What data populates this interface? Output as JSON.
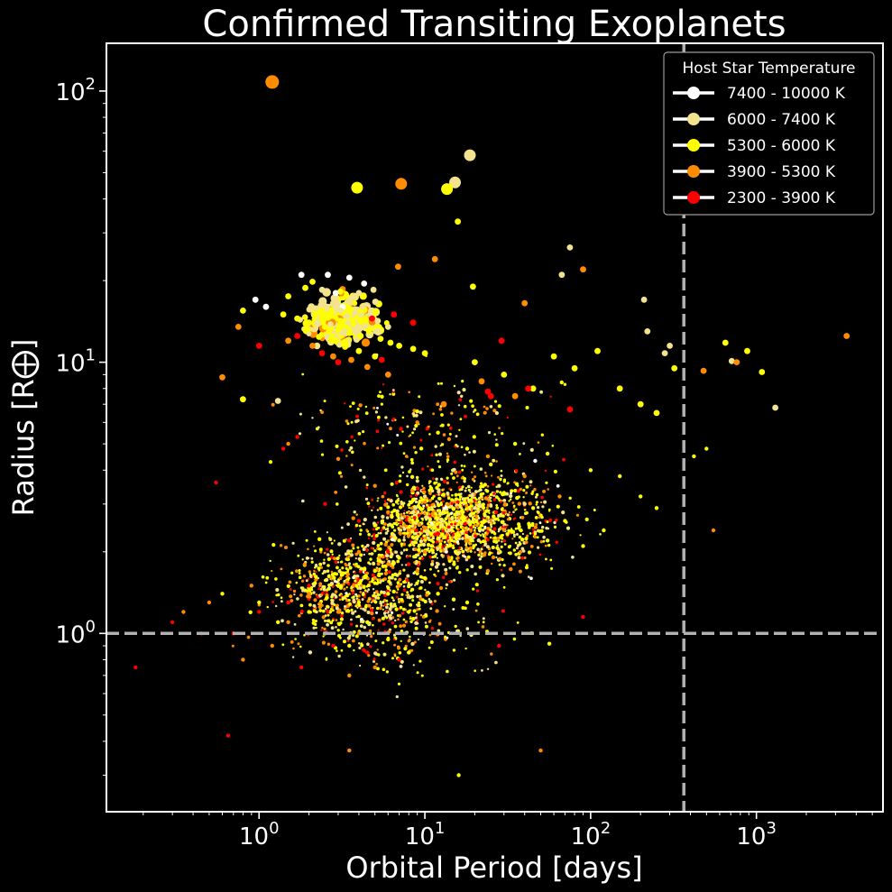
{
  "chart_data": {
    "type": "scatter",
    "title": "Confirmed Transiting Exoplanets",
    "xlabel": "Orbital Period [days]",
    "ylabel": "Radius [R⨁]",
    "xscale": "log",
    "yscale": "log",
    "xlim": [
      0.12,
      5800
    ],
    "ylim": [
      0.22,
      150
    ],
    "x_ticks": [
      {
        "value": 1,
        "label": "10",
        "exp": "0"
      },
      {
        "value": 10,
        "label": "10",
        "exp": "1"
      },
      {
        "value": 100,
        "label": "10",
        "exp": "2"
      },
      {
        "value": 1000,
        "label": "10",
        "exp": "3"
      }
    ],
    "y_ticks": [
      {
        "value": 1,
        "label": "10",
        "exp": "0"
      },
      {
        "value": 10,
        "label": "10",
        "exp": "1"
      },
      {
        "value": 100,
        "label": "10",
        "exp": "2"
      }
    ],
    "reference_lines": [
      {
        "axis": "x",
        "value": 365,
        "style": "dashed",
        "color": "#b0b0b0"
      },
      {
        "axis": "y",
        "value": 1,
        "style": "dashed",
        "color": "#b0b0b0"
      }
    ],
    "grid": false,
    "legend": {
      "title": "Host Star Temperature",
      "placement": "top-right",
      "entries": [
        {
          "label": "7400 - 10000 K",
          "color": "#ffffff"
        },
        {
          "label": "6000 - 7400 K",
          "color": "#f3e38e"
        },
        {
          "label": "5300 - 6000 K",
          "color": "#ffff00"
        },
        {
          "label": "3900 - 5300 K",
          "color": "#ff8c00"
        },
        {
          "label": "2300 - 3900 K",
          "color": "#ff0000"
        }
      ]
    },
    "series": [
      {
        "name": "7400 - 10000 K",
        "color": "#ffffff",
        "points": [
          [
            1.8,
            21
          ],
          [
            2.6,
            21
          ],
          [
            3.5,
            20.5
          ],
          [
            4.3,
            19.5
          ],
          [
            2.9,
            18
          ],
          [
            3.2,
            16
          ],
          [
            0.95,
            17
          ],
          [
            1.1,
            16
          ]
        ]
      },
      {
        "name": "6000 - 7400 K",
        "color": "#f3e38e",
        "points": [
          [
            18.7,
            58
          ],
          [
            15.2,
            46
          ],
          [
            75,
            26.5
          ],
          [
            67,
            21
          ],
          [
            210,
            17
          ],
          [
            2.4,
            18.5
          ],
          [
            2.8,
            16.5
          ],
          [
            3.1,
            15.5
          ],
          [
            3.4,
            14.8
          ],
          [
            3.8,
            15.2
          ],
          [
            4.2,
            16
          ],
          [
            4.7,
            15
          ],
          [
            5.2,
            14.2
          ],
          [
            6.0,
            13.5
          ],
          [
            2.7,
            13.8
          ],
          [
            3.3,
            13
          ],
          [
            3.9,
            12.8
          ],
          [
            4.4,
            13.6
          ],
          [
            2.2,
            15.8
          ],
          [
            3.6,
            17.2
          ],
          [
            4.0,
            18
          ],
          [
            4.9,
            18.5
          ],
          [
            1.3,
            7.2
          ],
          [
            220,
            13
          ],
          [
            300,
            11.5
          ],
          [
            280,
            10.8
          ],
          [
            710,
            10.1
          ],
          [
            1300,
            6.8
          ],
          [
            10,
            3.2
          ],
          [
            8.5,
            2.8
          ],
          [
            14,
            2.4
          ],
          [
            20,
            2.9
          ],
          [
            6.5,
            2.3
          ],
          [
            12,
            1.8
          ],
          [
            28,
            3.5
          ],
          [
            40,
            3.0
          ]
        ]
      },
      {
        "name": "5300 - 6000 K",
        "color": "#ffff00",
        "points": [
          [
            3.9,
            44
          ],
          [
            13.6,
            43.5
          ],
          [
            15.8,
            33
          ],
          [
            19.5,
            19
          ],
          [
            0.8,
            15.5
          ],
          [
            1.4,
            15
          ],
          [
            1.7,
            14.5
          ],
          [
            2.0,
            14
          ],
          [
            2.5,
            13.5
          ],
          [
            3.0,
            13.2
          ],
          [
            3.5,
            12.8
          ],
          [
            4.1,
            12.5
          ],
          [
            4.6,
            13
          ],
          [
            5.4,
            12.2
          ],
          [
            6.2,
            11.8
          ],
          [
            7.0,
            11.5
          ],
          [
            8.5,
            11.2
          ],
          [
            10,
            10.8
          ],
          [
            2.3,
            12.4
          ],
          [
            2.9,
            12
          ],
          [
            3.3,
            11.4
          ],
          [
            4.0,
            11
          ],
          [
            5.0,
            10.5
          ],
          [
            2.6,
            14.6
          ],
          [
            3.1,
            14.2
          ],
          [
            3.7,
            13.9
          ],
          [
            4.3,
            14.4
          ],
          [
            1.5,
            17.5
          ],
          [
            1.9,
            18.8
          ],
          [
            2.1,
            19.8
          ],
          [
            20,
            10
          ],
          [
            30,
            9
          ],
          [
            45,
            8
          ],
          [
            60,
            10.5
          ],
          [
            80,
            9.5
          ],
          [
            110,
            11
          ],
          [
            150,
            8
          ],
          [
            200,
            7
          ],
          [
            250,
            6.5
          ],
          [
            320,
            9.5
          ],
          [
            420,
            4.5
          ],
          [
            500,
            4.8
          ],
          [
            650,
            11.8
          ],
          [
            880,
            11
          ],
          [
            1080,
            9.2
          ],
          [
            0.8,
            7.3
          ],
          [
            12,
            5.5
          ],
          [
            18,
            4.8
          ],
          [
            25,
            4.2
          ],
          [
            35,
            5.0
          ],
          [
            55,
            4.6
          ],
          [
            100,
            4.0
          ],
          [
            150,
            3.8
          ],
          [
            200,
            3.2
          ],
          [
            250,
            2.9
          ],
          [
            5,
            2.5
          ],
          [
            7,
            2.2
          ],
          [
            9,
            2.6
          ],
          [
            11,
            2.1
          ],
          [
            13,
            2.8
          ],
          [
            16,
            2.3
          ],
          [
            19,
            3.1
          ],
          [
            22,
            2.5
          ],
          [
            26,
            2.7
          ],
          [
            30,
            3.3
          ],
          [
            38,
            2.4
          ],
          [
            45,
            2.9
          ],
          [
            55,
            2.2
          ],
          [
            70,
            2.6
          ],
          [
            90,
            2.1
          ],
          [
            120,
            2.4
          ],
          [
            3,
            1.5
          ],
          [
            4,
            1.3
          ],
          [
            5,
            1.7
          ],
          [
            6,
            1.4
          ],
          [
            7,
            1.9
          ],
          [
            8,
            1.2
          ],
          [
            10,
            1.6
          ],
          [
            12,
            1.4
          ],
          [
            15,
            1.8
          ],
          [
            18,
            1.3
          ],
          [
            2,
            1.2
          ],
          [
            2.5,
            1.0
          ],
          [
            3.5,
            0.9
          ],
          [
            4.5,
            1.1
          ],
          [
            6,
            0.95
          ],
          [
            8,
            0.85
          ],
          [
            1.0,
            1.3
          ],
          [
            1.3,
            1.1
          ],
          [
            0.6,
            1.4
          ],
          [
            16,
            0.3
          ]
        ]
      },
      {
        "name": "3900 - 5300 K",
        "color": "#ff8c00",
        "points": [
          [
            1.2,
            108
          ],
          [
            7.2,
            45.5
          ],
          [
            11.5,
            24
          ],
          [
            6.9,
            22.5
          ],
          [
            90,
            22
          ],
          [
            3500,
            12.5
          ],
          [
            0.75,
            13.5
          ],
          [
            1.5,
            12
          ],
          [
            2.1,
            11.5
          ],
          [
            2.8,
            10.5
          ],
          [
            3.6,
            10.2
          ],
          [
            4.5,
            9.6
          ],
          [
            6,
            9
          ],
          [
            0.6,
            8.8
          ],
          [
            40,
            16.5
          ],
          [
            13,
            7
          ],
          [
            22,
            8.5
          ],
          [
            35,
            7.5
          ],
          [
            480,
            9.3
          ],
          [
            760,
            10
          ],
          [
            9,
            6
          ],
          [
            14,
            5.2
          ],
          [
            24,
            4.5
          ],
          [
            40,
            3.8
          ],
          [
            65,
            3.2
          ],
          [
            1.5,
            5.0
          ],
          [
            3,
            4.4
          ],
          [
            5,
            3.5
          ],
          [
            6,
            2.8
          ],
          [
            8,
            2.4
          ],
          [
            10,
            2.0
          ],
          [
            14,
            1.9
          ],
          [
            18,
            2.2
          ],
          [
            24,
            1.7
          ],
          [
            4,
            2.0
          ],
          [
            5,
            1.6
          ],
          [
            6,
            1.8
          ],
          [
            7,
            1.5
          ],
          [
            9,
            1.7
          ],
          [
            3,
            1.2
          ],
          [
            4,
            1.0
          ],
          [
            2,
            1.4
          ],
          [
            1.5,
            1.1
          ],
          [
            0.9,
            1.5
          ],
          [
            0.5,
            1.3
          ],
          [
            0.35,
            1.2
          ],
          [
            0.8,
            0.8
          ],
          [
            1.2,
            0.9
          ],
          [
            3.5,
            0.7
          ],
          [
            5,
            0.75
          ],
          [
            550,
            2.4
          ],
          [
            50,
            0.37
          ],
          [
            3.5,
            0.37
          ]
        ]
      },
      {
        "name": "2300 - 3900 K",
        "color": "#ff0000",
        "points": [
          [
            1.7,
            12.5
          ],
          [
            2.4,
            10.8
          ],
          [
            3.0,
            10
          ],
          [
            4.8,
            14.5
          ],
          [
            6.5,
            15
          ],
          [
            8.5,
            14
          ],
          [
            5.5,
            10.2
          ],
          [
            1.0,
            11.5
          ],
          [
            29,
            12
          ],
          [
            42,
            8
          ],
          [
            25,
            7.5
          ],
          [
            75,
            6.7
          ],
          [
            1.4,
            4.8
          ],
          [
            1.7,
            5.3
          ],
          [
            0.55,
            3.6
          ],
          [
            2.5,
            3.0
          ],
          [
            4,
            2.6
          ],
          [
            6,
            2.0
          ],
          [
            8,
            1.8
          ],
          [
            3.5,
            2.2
          ],
          [
            2,
            1.5
          ],
          [
            1.5,
            1.3
          ],
          [
            1,
            1.2
          ],
          [
            0.7,
            1.0
          ],
          [
            0.45,
            1.0
          ],
          [
            0.3,
            1.1
          ],
          [
            0.18,
            0.75
          ],
          [
            0.65,
            0.42
          ],
          [
            1.8,
            0.75
          ],
          [
            2.8,
            0.9
          ],
          [
            4.5,
            0.85
          ],
          [
            7,
            0.8
          ],
          [
            28,
            0.9
          ],
          [
            90,
            1.15
          ],
          [
            24,
            7.8
          ]
        ]
      }
    ]
  }
}
